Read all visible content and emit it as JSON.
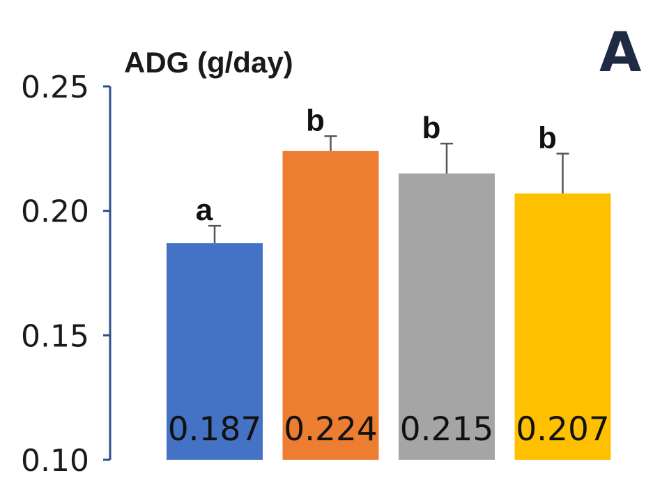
{
  "chart_data": {
    "type": "bar",
    "title": "",
    "ylabel": "ADG (g/day)",
    "panel_label": "A",
    "xlabel": "",
    "ylim": [
      0.1,
      0.25
    ],
    "yticks": [
      "0.10",
      "0.15",
      "0.20",
      "0.25"
    ],
    "categories": [
      "",
      "",
      "",
      ""
    ],
    "values": [
      0.187,
      0.224,
      0.215,
      0.207
    ],
    "error_upper": [
      0.007,
      0.006,
      0.012,
      0.016
    ],
    "value_labels": [
      "0.187",
      "0.224",
      "0.215",
      "0.207"
    ],
    "significance": [
      "a",
      "b",
      "b",
      "b"
    ],
    "colors": [
      "#4472c4",
      "#ed7d31",
      "#a5a5a5",
      "#ffc000"
    ],
    "grid": false,
    "legend": "none"
  }
}
